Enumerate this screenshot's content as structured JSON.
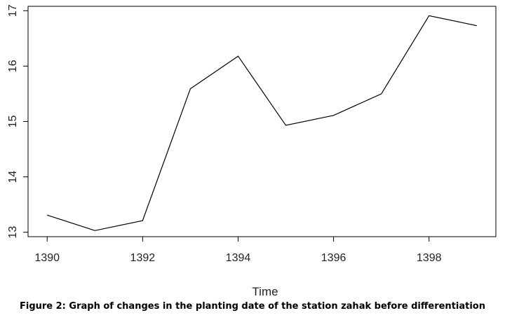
{
  "chart_data": {
    "type": "line",
    "xlabel": "Time",
    "ylabel": "",
    "xlim": [
      1389.6,
      1399.4
    ],
    "ylim": [
      12.92,
      17.08
    ],
    "x_ticks": [
      1390,
      1392,
      1394,
      1396,
      1398
    ],
    "y_ticks": [
      13,
      14,
      15,
      16,
      17
    ],
    "grid": false,
    "series": [
      {
        "x": [
          1390,
          1391,
          1392,
          1393,
          1394,
          1395,
          1396,
          1397,
          1398,
          1399
        ],
        "values": [
          13.31,
          13.03,
          13.21,
          15.59,
          16.18,
          14.93,
          15.11,
          15.5,
          16.91,
          16.73
        ]
      }
    ]
  },
  "figure": {
    "caption": "Figure 2: Graph of changes in the planting date of the station zahak before differentiation"
  }
}
